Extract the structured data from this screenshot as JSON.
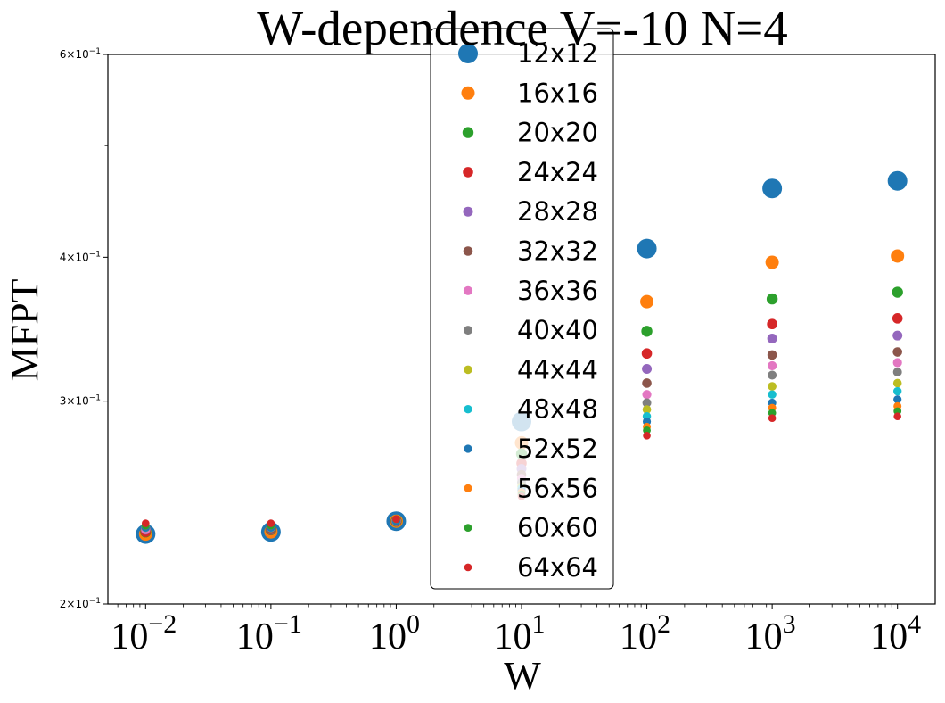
{
  "chart_data": {
    "type": "scatter",
    "title": "W-dependence V=-10 N=4",
    "xlabel": "W",
    "ylabel": "MFPT",
    "xscale": "log",
    "yscale": "log",
    "xlim": [
      0.005,
      20000
    ],
    "ylim": [
      0.2,
      0.6
    ],
    "x": [
      0.01,
      0.1,
      1,
      10,
      100,
      1000,
      10000
    ],
    "xticks": [
      {
        "base": "10",
        "exp": "−2"
      },
      {
        "base": "10",
        "exp": "−1"
      },
      {
        "base": "10",
        "exp": "0"
      },
      {
        "base": "10",
        "exp": "1"
      },
      {
        "base": "10",
        "exp": "2"
      },
      {
        "base": "10",
        "exp": "3"
      },
      {
        "base": "10",
        "exp": "4"
      }
    ],
    "yticks": [
      {
        "value": 0.2,
        "mant": "2",
        "exp": "−1"
      },
      {
        "value": 0.3,
        "mant": "3",
        "exp": "−1"
      },
      {
        "value": 0.4,
        "mant": "4",
        "exp": "−1"
      },
      {
        "value": 0.6,
        "mant": "6",
        "exp": "−1"
      }
    ],
    "grid": false,
    "legend_position": "top-center",
    "series": [
      {
        "name": "12x12",
        "color": "#1f77b4",
        "values": [
          0.23,
          0.231,
          0.236,
          0.288,
          0.407,
          0.459,
          0.466
        ]
      },
      {
        "name": "16x16",
        "color": "#ff7f0e",
        "values": [
          0.23,
          0.231,
          0.236,
          0.276,
          0.366,
          0.396,
          0.401
        ]
      },
      {
        "name": "20x20",
        "color": "#2ca02c",
        "values": [
          0.231,
          0.232,
          0.236,
          0.27,
          0.345,
          0.368,
          0.373
        ]
      },
      {
        "name": "24x24",
        "color": "#d62728",
        "values": [
          0.231,
          0.232,
          0.236,
          0.265,
          0.33,
          0.35,
          0.354
        ]
      },
      {
        "name": "28x28",
        "color": "#9467bd",
        "values": [
          0.232,
          0.232,
          0.236,
          0.262,
          0.32,
          0.34,
          0.342
        ]
      },
      {
        "name": "32x32",
        "color": "#8c564b",
        "values": [
          0.232,
          0.232,
          0.236,
          0.259,
          0.311,
          0.329,
          0.331
        ]
      },
      {
        "name": "36x36",
        "color": "#e377c2",
        "values": [
          0.232,
          0.233,
          0.236,
          0.257,
          0.304,
          0.322,
          0.324
        ]
      },
      {
        "name": "40x40",
        "color": "#7f7f7f",
        "values": [
          0.233,
          0.233,
          0.236,
          0.255,
          0.299,
          0.316,
          0.318
        ]
      },
      {
        "name": "44x44",
        "color": "#bcbd22",
        "values": [
          0.233,
          0.233,
          0.236,
          0.253,
          0.295,
          0.309,
          0.311
        ]
      },
      {
        "name": "48x48",
        "color": "#17becf",
        "values": [
          0.233,
          0.233,
          0.236,
          0.252,
          0.291,
          0.304,
          0.306
        ]
      },
      {
        "name": "52x52",
        "color": "#1f77b4",
        "values": [
          0.233,
          0.233,
          0.236,
          0.251,
          0.288,
          0.299,
          0.301
        ]
      },
      {
        "name": "56x56",
        "color": "#ff7f0e",
        "values": [
          0.234,
          0.234,
          0.237,
          0.25,
          0.285,
          0.296,
          0.297
        ]
      },
      {
        "name": "60x60",
        "color": "#2ca02c",
        "values": [
          0.234,
          0.234,
          0.237,
          0.249,
          0.283,
          0.293,
          0.294
        ]
      },
      {
        "name": "64x64",
        "color": "#d62728",
        "values": [
          0.235,
          0.235,
          0.237,
          0.248,
          0.28,
          0.29,
          0.291
        ]
      }
    ]
  }
}
